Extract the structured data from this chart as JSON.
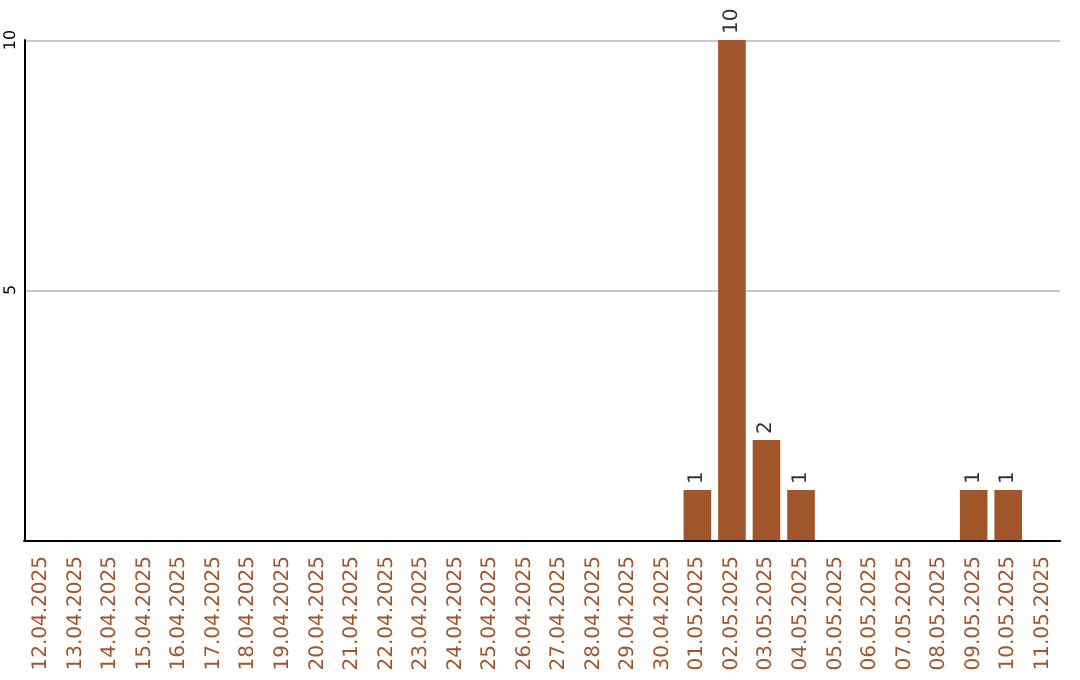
{
  "chart_data": {
    "type": "bar",
    "categories": [
      "12.04.2025",
      "13.04.2025",
      "14.04.2025",
      "15.04.2025",
      "16.04.2025",
      "17.04.2025",
      "18.04.2025",
      "19.04.2025",
      "20.04.2025",
      "21.04.2025",
      "22.04.2025",
      "23.04.2025",
      "24.04.2025",
      "25.04.2025",
      "26.04.2025",
      "27.04.2025",
      "28.04.2025",
      "29.04.2025",
      "30.04.2025",
      "01.05.2025",
      "02.05.2025",
      "03.05.2025",
      "04.05.2025",
      "05.05.2025",
      "06.05.2025",
      "07.05.2025",
      "08.05.2025",
      "09.05.2025",
      "10.05.2025",
      "11.05.2025"
    ],
    "values": [
      0,
      0,
      0,
      0,
      0,
      0,
      0,
      0,
      0,
      0,
      0,
      0,
      0,
      0,
      0,
      0,
      0,
      0,
      0,
      1,
      10,
      2,
      1,
      0,
      0,
      0,
      0,
      1,
      1,
      0
    ],
    "value_labels": [
      null,
      null,
      null,
      null,
      null,
      null,
      null,
      null,
      null,
      null,
      null,
      null,
      null,
      null,
      null,
      null,
      null,
      null,
      null,
      "1",
      "10",
      "2",
      "1",
      null,
      null,
      null,
      null,
      "1",
      "1",
      null
    ],
    "color": "#a0562a",
    "ylim": [
      0,
      10
    ],
    "yticks": [
      {
        "value": 0,
        "label": null
      },
      5,
      10
    ],
    "grid": "y"
  }
}
